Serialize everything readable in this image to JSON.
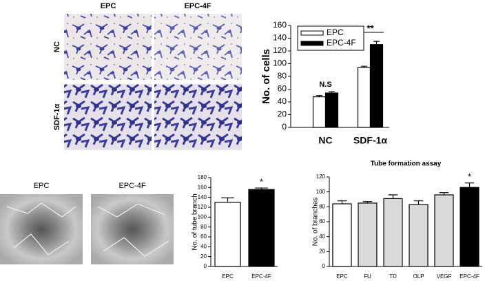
{
  "panels": {
    "top": {
      "columns": [
        "EPC",
        "EPC-4F"
      ],
      "rows": [
        "NC",
        "SDF-1α"
      ]
    },
    "bottom": {
      "columns": [
        "EPC",
        "EPC-4F"
      ]
    }
  },
  "chart_data": [
    {
      "type": "bar",
      "ylabel": "No. of cells",
      "categories": [
        "NC",
        "SDF-1α"
      ],
      "series": [
        {
          "name": "EPC",
          "color": "#ffffff",
          "values": [
            48,
            94
          ],
          "errors": [
            2,
            2
          ]
        },
        {
          "name": "EPC-4F",
          "color": "#000000",
          "values": [
            54,
            130
          ],
          "errors": [
            2,
            5
          ]
        }
      ],
      "ylim": [
        0,
        160
      ],
      "yticks": [
        0,
        20,
        40,
        60,
        80,
        100,
        120,
        140,
        160
      ],
      "legend": "upper left",
      "annotations": [
        {
          "text": "N.S",
          "category": "NC"
        },
        {
          "text": "**",
          "category": "SDF-1α"
        }
      ]
    },
    {
      "type": "bar",
      "ylabel": "No. of tube branch",
      "categories": [
        "EPC",
        "EPC-4F"
      ],
      "values": [
        130,
        156
      ],
      "errors": [
        9,
        3
      ],
      "colors": [
        "#ffffff",
        "#000000"
      ],
      "ylim": [
        0,
        180
      ],
      "yticks": [
        0,
        20,
        40,
        60,
        80,
        100,
        120,
        140,
        160,
        180
      ],
      "annotations": [
        {
          "text": "*",
          "category": "EPC-4F"
        }
      ]
    },
    {
      "type": "bar",
      "title": "Tube formation assay",
      "ylabel": "No. of branches",
      "categories": [
        "EPC",
        "FU",
        "TD",
        "OLP",
        "VEGF",
        "EPC-4F"
      ],
      "values": [
        84,
        85,
        91,
        83,
        96,
        106
      ],
      "errors": [
        4,
        2,
        5,
        5,
        3,
        6
      ],
      "colors": [
        "#ffffff",
        "#d9d9d9",
        "#d9d9d9",
        "#d9d9d9",
        "#d9d9d9",
        "#000000"
      ],
      "ylim": [
        0,
        120
      ],
      "yticks": [
        0,
        20,
        40,
        60,
        80,
        100,
        120
      ],
      "annotations": [
        {
          "text": "*",
          "category": "EPC-4F"
        }
      ]
    }
  ]
}
